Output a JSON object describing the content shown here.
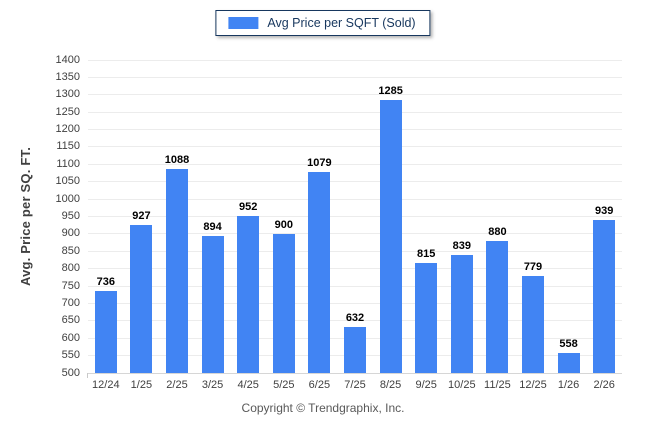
{
  "chart_data": {
    "type": "bar",
    "title": "",
    "legend": "Avg Price per SQFT (Sold)",
    "categories": [
      "12/24",
      "1/25",
      "2/25",
      "3/25",
      "4/25",
      "5/25",
      "6/25",
      "7/25",
      "8/25",
      "9/25",
      "10/25",
      "11/25",
      "12/25",
      "1/26",
      "2/26"
    ],
    "values": [
      736,
      927,
      1088,
      894,
      952,
      900,
      1079,
      632,
      1285,
      815,
      839,
      880,
      779,
      558,
      939
    ],
    "xlabel": "",
    "ylabel": "Avg. Price per SQ. FT.",
    "ylim": [
      500,
      1400
    ],
    "ytick_step": 50,
    "grid": "horizontal",
    "legend_position": "top-center",
    "value_labels": true,
    "bar_color": "#4184F3"
  },
  "footer": {
    "copyright": "Copyright © Trendgraphix, Inc."
  },
  "colors": {
    "bar": "#4184F3",
    "gridline": "#ececec",
    "axis_text": "#404040",
    "value_label_text": "#000000",
    "legend_border": "#17375e",
    "legend_text": "#17375e",
    "footer_text": "#595959",
    "background": "#ffffff"
  }
}
